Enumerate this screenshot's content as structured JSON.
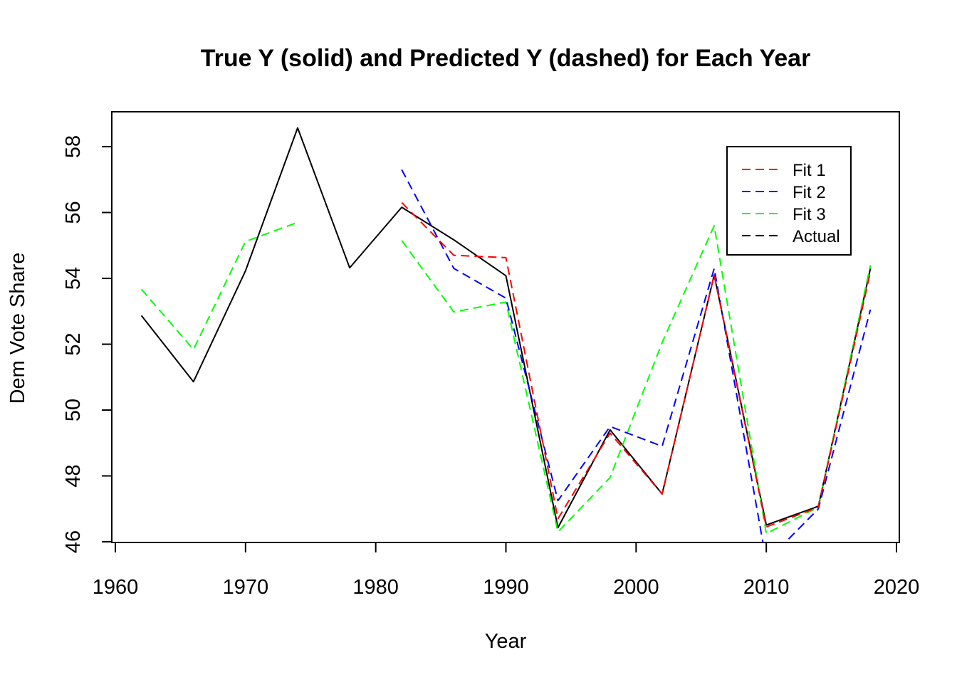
{
  "chart_data": {
    "type": "line",
    "title": "True Y (solid) and Predicted Y (dashed) for Each Year",
    "xlabel": "Year",
    "ylabel": "Dem Vote Share",
    "xlim": [
      1960,
      2020
    ],
    "ylim": [
      46,
      59
    ],
    "xticks": [
      1960,
      1970,
      1980,
      1990,
      2000,
      2010,
      2020
    ],
    "yticks": [
      46,
      48,
      50,
      52,
      54,
      56,
      58
    ],
    "grid": false,
    "legend_position": "top-right",
    "series": [
      {
        "name": "Actual",
        "legend_name": "Actual",
        "style": "solid",
        "color": "#000000",
        "x": [
          1962,
          1966,
          1970,
          1974,
          1978,
          1982,
          1986,
          1990,
          1994,
          1998,
          2002,
          2006,
          2010,
          2014,
          2018
        ],
        "y": [
          52.87,
          50.86,
          54.23,
          58.57,
          54.32,
          56.16,
          55.17,
          54.08,
          46.43,
          49.4,
          47.45,
          54.1,
          46.51,
          47.08,
          54.3
        ]
      },
      {
        "name": "Fit 3",
        "legend_name": "Fit 3",
        "style": "dashed",
        "color": "#00ff00",
        "x": [
          1962,
          1966,
          1970,
          1974
        ],
        "y": [
          53.67,
          51.84,
          55.12,
          55.7
        ]
      },
      {
        "name": "Fit 3",
        "legend_name": "",
        "style": "dashed",
        "color": "#00ff00",
        "x": [
          1982,
          1986,
          1990,
          1994,
          1998,
          2002,
          2006,
          2010,
          2014,
          2018
        ],
        "y": [
          55.15,
          52.98,
          53.28,
          46.3,
          47.95,
          52.05,
          55.6,
          46.25,
          47.05,
          54.4
        ]
      },
      {
        "name": "Fit 2",
        "legend_name": "Fit 2",
        "style": "dashed",
        "color": "#0000ff",
        "x": [
          1982,
          1986,
          1990,
          1994,
          1998,
          2002,
          2006,
          2010,
          2014,
          2018
        ],
        "y": [
          57.3,
          54.3,
          53.4,
          47.25,
          49.5,
          48.9,
          54.3,
          45.4,
          47.0,
          53.05
        ]
      },
      {
        "name": "Fit 1",
        "legend_name": "Fit 1",
        "style": "dashed",
        "color": "#ff0000",
        "x": [
          1982,
          1986,
          1990,
          1994,
          1998,
          2002,
          2006,
          2010,
          2014,
          2018
        ],
        "y": [
          56.3,
          54.7,
          54.63,
          46.7,
          49.3,
          47.45,
          54.1,
          46.45,
          47.05,
          54.2
        ]
      }
    ],
    "legend": [
      {
        "label": "Fit 1",
        "color": "#ff0000",
        "style": "dashed"
      },
      {
        "label": "Fit 2",
        "color": "#0000ff",
        "style": "dashed"
      },
      {
        "label": "Fit 3",
        "color": "#00ff00",
        "style": "dashed"
      },
      {
        "label": "Actual",
        "color": "#000000",
        "style": "dashed"
      }
    ]
  }
}
